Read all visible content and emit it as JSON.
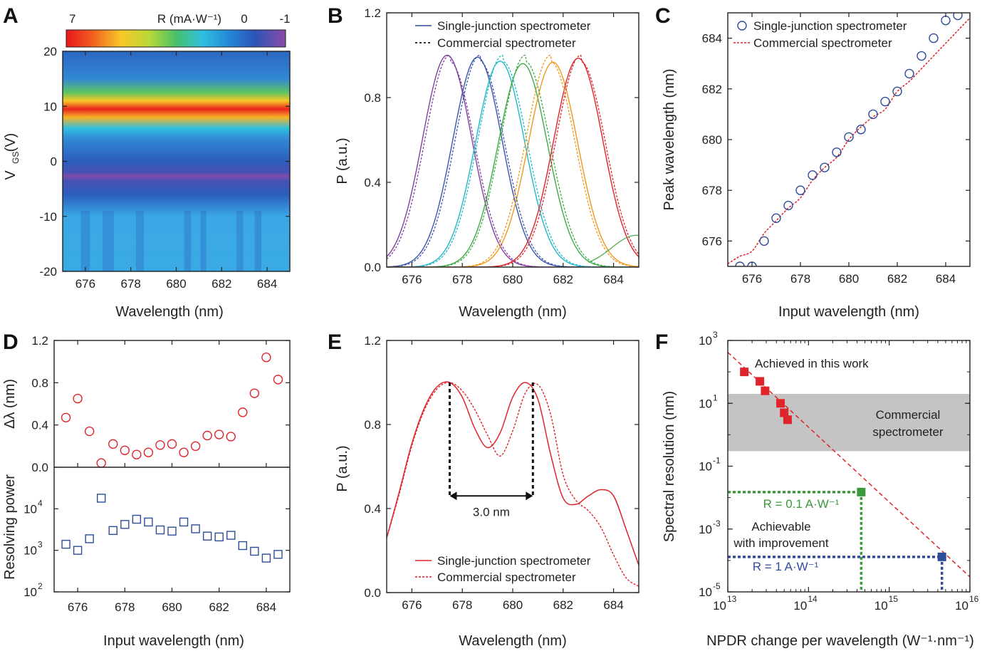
{
  "panels": {
    "A": {
      "label": "A"
    },
    "B": {
      "label": "B"
    },
    "C": {
      "label": "C"
    },
    "D": {
      "label": "D"
    },
    "E": {
      "label": "E"
    },
    "F": {
      "label": "F"
    }
  },
  "colors": {
    "red": "#e0242c",
    "blue": "#2e4c9a",
    "green": "#3a9a3a",
    "gray_band": "#c4c4c4",
    "spectrum": [
      "#8040a0",
      "#3a56a8",
      "#22b8c8",
      "#40aa48",
      "#f0981e",
      "#e0242c"
    ]
  },
  "chart_data": [
    {
      "id": "A",
      "type": "heatmap",
      "xlabel": "Wavelength (nm)",
      "ylabel_main": "V",
      "ylabel_sub": "GS",
      "ylabel_unit": "(V)",
      "xlim": [
        675,
        685
      ],
      "ylim": [
        -20,
        20
      ],
      "xticks": [
        "676",
        "678",
        "680",
        "682",
        "684"
      ],
      "yticks": [
        "20",
        "10",
        "0",
        "-10",
        "-20"
      ],
      "colorbar": {
        "title": "R (mA·W⁻¹)",
        "ticks": [
          "7",
          "0",
          "-1"
        ],
        "range": [
          -1,
          7
        ]
      },
      "profile_vs_vgs": [
        [
          20,
          0.2
        ],
        [
          15,
          0.6
        ],
        [
          12.5,
          3.2
        ],
        [
          11,
          5.0
        ],
        [
          9.5,
          6.8
        ],
        [
          8,
          5.2
        ],
        [
          6,
          2.0
        ],
        [
          4,
          0.6
        ],
        [
          0,
          0.1
        ],
        [
          -2,
          -0.3
        ],
        [
          -2.7,
          -0.9
        ],
        [
          -3.5,
          -0.3
        ],
        [
          -6,
          0.1
        ],
        [
          -10,
          1.0
        ],
        [
          -20,
          1.1
        ]
      ]
    },
    {
      "id": "B",
      "type": "line",
      "xlabel": "Wavelength (nm)",
      "ylabel": "P (a.u.)",
      "xlim": [
        675,
        685
      ],
      "ylim": [
        0,
        1.2
      ],
      "xticks": [
        "676",
        "678",
        "680",
        "682",
        "684"
      ],
      "yticks": [
        "0.0",
        "0.4",
        "0.8",
        "1.2"
      ],
      "legend": [
        "Single-junction spectrometer",
        "Commercial spectrometer"
      ],
      "peaks_single": [
        677.4,
        678.6,
        679.5,
        680.4,
        681.6,
        682.6
      ],
      "peaks_commercial": [
        677.5,
        678.7,
        679.6,
        680.5,
        681.5,
        682.7
      ],
      "fwhm_nm": 2.3
    },
    {
      "id": "C",
      "type": "scatter",
      "xlabel": "Input wavelength (nm)",
      "ylabel": "Peak wavelength (nm)",
      "xlim": [
        675,
        685
      ],
      "ylim": [
        675,
        685
      ],
      "xticks": [
        "676",
        "678",
        "680",
        "682",
        "684"
      ],
      "yticks": [
        "676",
        "678",
        "680",
        "682",
        "684"
      ],
      "legend": [
        "Single-junction spectrometer",
        "Commercial spectrometer"
      ],
      "single": {
        "x": [
          675.5,
          676,
          676.5,
          677,
          677.5,
          678,
          678.5,
          679,
          679.5,
          680,
          680.5,
          681,
          681.5,
          682,
          682.5,
          683,
          683.5,
          684,
          684.5
        ],
        "y": [
          675,
          675,
          676,
          676.9,
          677.4,
          678,
          678.6,
          678.9,
          679.5,
          680.1,
          680.4,
          681,
          681.5,
          681.9,
          682.6,
          683.3,
          684,
          684.7,
          684.9
        ]
      },
      "commercial": {
        "x": [
          675,
          675.5,
          676,
          676.5,
          677,
          677.5,
          678,
          678.5,
          679,
          679.5,
          680,
          680.5,
          681,
          681.5,
          682,
          682.5,
          683,
          683.5,
          684,
          684.5,
          685
        ],
        "y": [
          675.1,
          675.4,
          675.6,
          676.3,
          676.8,
          677.3,
          677.7,
          678.4,
          678.9,
          679.3,
          680,
          680.5,
          680.9,
          681.2,
          681.9,
          682.3,
          682.8,
          683.3,
          683.8,
          684.3,
          684.8
        ]
      }
    },
    {
      "id": "D",
      "type": "scatter",
      "xlabel": "Input wavelength (nm)",
      "xlim": [
        675,
        685
      ],
      "xticks": [
        "676",
        "678",
        "680",
        "682",
        "684"
      ],
      "top": {
        "ylabel": "Δλ (nm)",
        "ylim": [
          0,
          1.2
        ],
        "yticks": [
          "0.0",
          "0.4",
          "0.8",
          "1.2"
        ],
        "x": [
          675.5,
          676,
          676.5,
          677,
          677.5,
          678,
          678.5,
          679,
          679.5,
          680,
          680.5,
          681,
          681.5,
          682,
          682.5,
          683,
          683.5,
          684,
          684.5
        ],
        "y": [
          0.47,
          0.65,
          0.34,
          0.04,
          0.22,
          0.16,
          0.12,
          0.14,
          0.21,
          0.22,
          0.14,
          0.2,
          0.3,
          0.31,
          0.29,
          0.52,
          0.7,
          1.04,
          0.83
        ]
      },
      "bottom": {
        "ylabel": "Resolving power",
        "yscale": "log",
        "ylim_exp": [
          2,
          5
        ],
        "yticks": [
          {
            "base": "10",
            "exp": "2"
          },
          {
            "base": "10",
            "exp": "3"
          },
          {
            "base": "10",
            "exp": "4"
          }
        ],
        "x": [
          675.5,
          676,
          676.5,
          677,
          677.5,
          678,
          678.5,
          679,
          679.5,
          680,
          680.5,
          681,
          681.5,
          682,
          682.5,
          683,
          683.5,
          684,
          684.5
        ],
        "y": [
          1400,
          1000,
          1900,
          18000,
          3000,
          4200,
          5600,
          4800,
          3100,
          2900,
          4800,
          3300,
          2200,
          2100,
          2300,
          1300,
          950,
          650,
          800
        ]
      }
    },
    {
      "id": "E",
      "type": "line",
      "xlabel": "Wavelength (nm)",
      "ylabel": "P (a.u.)",
      "xlim": [
        675,
        685
      ],
      "ylim": [
        0,
        1.2
      ],
      "xticks": [
        "676",
        "678",
        "680",
        "682",
        "684"
      ],
      "yticks": [
        "0.0",
        "0.4",
        "0.8",
        "1.2"
      ],
      "legend": [
        "Single-junction spectrometer",
        "Commercial spectrometer"
      ],
      "annotation": "3.0 nm",
      "marker_x": [
        677.5,
        680.8
      ],
      "single": {
        "x": [
          675,
          675.5,
          676,
          676.5,
          677,
          677.5,
          678,
          678.5,
          679,
          679.5,
          680,
          680.5,
          681,
          681.5,
          682,
          682.5,
          683,
          683.5,
          684,
          684.5,
          685
        ],
        "y": [
          0.26,
          0.48,
          0.71,
          0.88,
          0.98,
          1.0,
          0.93,
          0.78,
          0.69,
          0.76,
          0.93,
          1.0,
          0.92,
          0.66,
          0.45,
          0.42,
          0.46,
          0.49,
          0.46,
          0.3,
          0.13
        ]
      },
      "commercial": {
        "x": [
          675,
          675.5,
          676,
          676.5,
          677,
          677.5,
          678,
          678.5,
          679,
          679.5,
          680,
          680.5,
          681,
          681.5,
          682,
          682.5,
          683,
          683.5,
          684,
          684.5,
          685
        ],
        "y": [
          0.26,
          0.47,
          0.7,
          0.87,
          0.97,
          1.0,
          0.96,
          0.87,
          0.75,
          0.65,
          0.77,
          0.95,
          0.99,
          0.85,
          0.56,
          0.44,
          0.39,
          0.31,
          0.18,
          0.07,
          0.03
        ]
      }
    },
    {
      "id": "F",
      "type": "scatter",
      "xlabel": "NPDR change per wavelength (W⁻¹·nm⁻¹)",
      "ylabel": "Spectral resolution (nm)",
      "xscale": "log",
      "yscale": "log",
      "xlim_exp": [
        13,
        16
      ],
      "ylim_exp": [
        -5,
        3
      ],
      "xticks": [
        {
          "base": "10",
          "exp": "13"
        },
        {
          "base": "10",
          "exp": "14"
        },
        {
          "base": "10",
          "exp": "15"
        },
        {
          "base": "10",
          "exp": "16"
        }
      ],
      "yticks": [
        {
          "base": "10",
          "exp": "3"
        },
        {
          "base": "10",
          "exp": "1"
        },
        {
          "base": "10",
          "exp": "-1"
        },
        {
          "base": "10",
          "exp": "-3"
        },
        {
          "base": "10",
          "exp": "-5"
        }
      ],
      "band_label": [
        "Commercial",
        "spectrometer"
      ],
      "band_y": [
        0.3,
        20
      ],
      "achieved_label": "Achieved in this work",
      "achieved": {
        "x": [
          16000000000000.0,
          25000000000000.0,
          29000000000000.0,
          45000000000000.0,
          50000000000000.0,
          55000000000000.0
        ],
        "y": [
          100,
          50,
          25,
          10,
          5,
          3
        ]
      },
      "green_point": {
        "x": 450000000000000.0,
        "y": 0.015,
        "label": "R = 0.1 A·W⁻¹"
      },
      "blue_point": {
        "x": 4500000000000000.0,
        "y": 0.00013,
        "label": "R = 1 A·W⁻¹"
      },
      "improvement_label": [
        "Achievable",
        "with improvement"
      ],
      "fit": {
        "x": [
          10000000000000.0,
          1e+16
        ],
        "y": [
          420,
          3e-05
        ]
      }
    }
  ]
}
